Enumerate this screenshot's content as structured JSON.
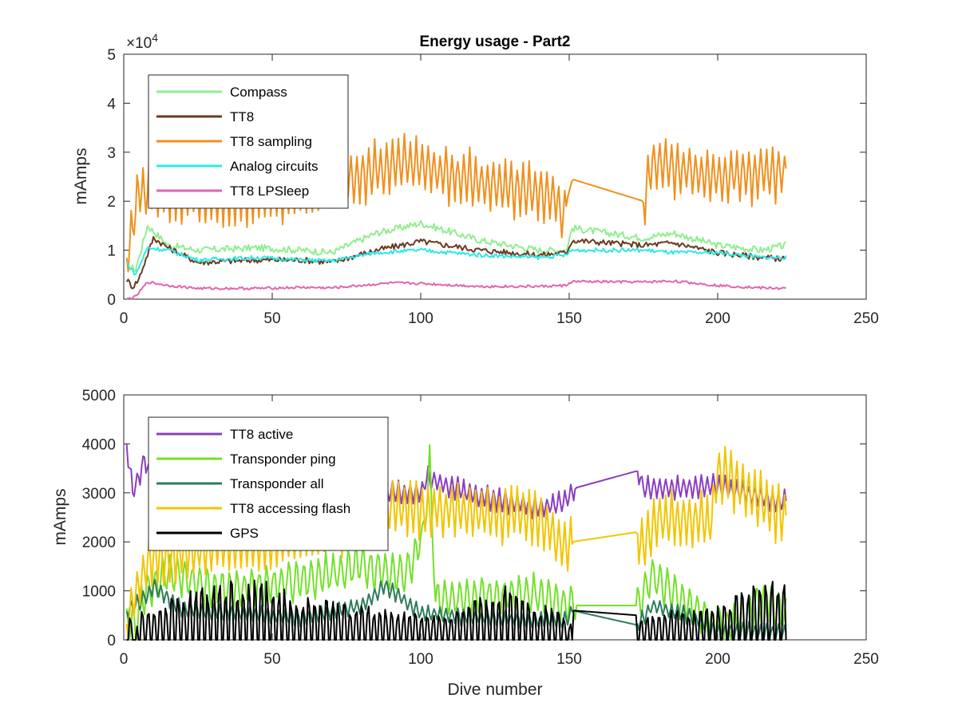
{
  "figure_title": "Energy usage - Part2",
  "chart_data": [
    {
      "type": "line",
      "title": "Energy usage - Part2",
      "xlabel": "",
      "ylabel": "mAmps",
      "exponent_label": "×10",
      "exponent_power": "4",
      "xlim": [
        0,
        250
      ],
      "ylim": [
        0,
        50000
      ],
      "xticks": [
        0,
        50,
        100,
        150,
        200,
        250
      ],
      "yticks": [
        0,
        10000,
        20000,
        30000,
        40000,
        50000
      ],
      "ytick_labels": [
        "0",
        "1",
        "2",
        "3",
        "4",
        "5"
      ],
      "grid": false,
      "legend_position": "top-left",
      "series": [
        {
          "name": "Compass",
          "color": "#90ee90",
          "gen": {
            "kind": "smooth",
            "levels": [
              [
                1,
                7000
              ],
              [
                4,
                6000
              ],
              [
                8,
                15000
              ],
              [
                15,
                11000
              ],
              [
                25,
                10000
              ],
              [
                45,
                10500
              ],
              [
                60,
                10000
              ],
              [
                70,
                9500
              ],
              [
                85,
                13500
              ],
              [
                100,
                15500
              ],
              [
                120,
                12000
              ],
              [
                140,
                10000
              ],
              [
                149,
                10000
              ],
              [
                151,
                14500
              ],
              [
                175,
                12500
              ],
              [
                185,
                13500
              ],
              [
                200,
                11000
              ],
              [
                215,
                10000
              ],
              [
                223,
                11000
              ]
            ],
            "noise": 700
          }
        },
        {
          "name": "TT8",
          "color": "#6b3a1f",
          "gen": {
            "kind": "smooth",
            "levels": [
              [
                1,
                4000
              ],
              [
                3,
                2500
              ],
              [
                5,
                4000
              ],
              [
                10,
                12500
              ],
              [
                15,
                10500
              ],
              [
                25,
                7500
              ],
              [
                45,
                8000
              ],
              [
                60,
                8000
              ],
              [
                70,
                7500
              ],
              [
                85,
                10000
              ],
              [
                100,
                11800
              ],
              [
                120,
                10000
              ],
              [
                140,
                9000
              ],
              [
                149,
                9500
              ],
              [
                151,
                12000
              ],
              [
                175,
                11000
              ],
              [
                185,
                11500
              ],
              [
                200,
                9500
              ],
              [
                215,
                8500
              ],
              [
                223,
                8200
              ]
            ],
            "noise": 600
          }
        },
        {
          "name": "TT8 sampling",
          "color": "#f0901e",
          "gen": {
            "kind": "osc",
            "levels": [
              [
                1,
                8000
              ],
              [
                5,
                22000
              ],
              [
                10,
                22000
              ],
              [
                30,
                21000
              ],
              [
                60,
                22000
              ],
              [
                75,
                24000
              ],
              [
                95,
                28000
              ],
              [
                105,
                26000
              ],
              [
                120,
                24000
              ],
              [
                145,
                21000
              ],
              [
                148,
                17000
              ],
              [
                151,
                24500
              ],
              [
                175,
                20000
              ],
              [
                178,
                28000
              ],
              [
                200,
                25000
              ],
              [
                223,
                26000
              ]
            ],
            "amp": 6000,
            "period": 2,
            "gaps": [
              [
                149,
                151
              ],
              [
                151,
                175
              ]
            ]
          }
        },
        {
          "name": "Analog circuits",
          "color": "#2ee8e8",
          "gen": {
            "kind": "smooth",
            "levels": [
              [
                1,
                7500
              ],
              [
                4,
                5000
              ],
              [
                8,
                10500
              ],
              [
                15,
                10000
              ],
              [
                25,
                8000
              ],
              [
                45,
                8500
              ],
              [
                60,
                8000
              ],
              [
                70,
                7800
              ],
              [
                85,
                9500
              ],
              [
                100,
                10000
              ],
              [
                120,
                9000
              ],
              [
                140,
                8500
              ],
              [
                149,
                9000
              ],
              [
                151,
                10000
              ],
              [
                175,
                10000
              ],
              [
                185,
                9500
              ],
              [
                200,
                9500
              ],
              [
                215,
                8500
              ],
              [
                223,
                8500
              ]
            ],
            "noise": 400
          }
        },
        {
          "name": "TT8 LPSleep",
          "color": "#e066b0",
          "gen": {
            "kind": "smooth",
            "levels": [
              [
                1,
                0
              ],
              [
                4,
                500
              ],
              [
                8,
                3500
              ],
              [
                15,
                2800
              ],
              [
                25,
                2200
              ],
              [
                45,
                2200
              ],
              [
                60,
                2400
              ],
              [
                70,
                2300
              ],
              [
                90,
                3300
              ],
              [
                100,
                3200
              ],
              [
                120,
                2600
              ],
              [
                140,
                2600
              ],
              [
                149,
                2800
              ],
              [
                151,
                3600
              ],
              [
                175,
                3500
              ],
              [
                185,
                3700
              ],
              [
                200,
                2800
              ],
              [
                215,
                2300
              ],
              [
                223,
                2200
              ]
            ],
            "noise": 250
          }
        }
      ]
    },
    {
      "type": "line",
      "title": "",
      "xlabel": "Dive number",
      "ylabel": "mAmps",
      "xlim": [
        0,
        250
      ],
      "ylim": [
        0,
        5000
      ],
      "xticks": [
        0,
        50,
        100,
        150,
        200,
        250
      ],
      "yticks": [
        0,
        1000,
        2000,
        3000,
        4000,
        5000
      ],
      "ytick_labels": [
        "0",
        "1000",
        "2000",
        "3000",
        "4000",
        "5000"
      ],
      "grid": false,
      "legend_position": "top-left",
      "series": [
        {
          "name": "TT8 active",
          "color": "#8b3fbf",
          "gen": {
            "kind": "osc",
            "levels": [
              [
                1,
                4000
              ],
              [
                3,
                3000
              ],
              [
                7,
                3700
              ],
              [
                10,
                3200
              ],
              [
                30,
                3300
              ],
              [
                60,
                3000
              ],
              [
                80,
                3000
              ],
              [
                100,
                3000
              ],
              [
                102,
                3300
              ],
              [
                120,
                2900
              ],
              [
                140,
                2700
              ],
              [
                148,
                2800
              ],
              [
                152,
                3100
              ],
              [
                173,
                3450
              ],
              [
                175,
                3100
              ],
              [
                185,
                3100
              ],
              [
                200,
                3150
              ],
              [
                215,
                2900
              ],
              [
                223,
                2800
              ]
            ],
            "amp": 250,
            "period": 2,
            "gaps": [
              [
                152,
                173
              ]
            ]
          }
        },
        {
          "name": "Transponder ping",
          "color": "#74e02a",
          "gen": {
            "kind": "osc",
            "levels": [
              [
                1,
                500
              ],
              [
                4,
                200
              ],
              [
                6,
                900
              ],
              [
                15,
                1400
              ],
              [
                30,
                1000
              ],
              [
                60,
                1200
              ],
              [
                80,
                1500
              ],
              [
                95,
                1300
              ],
              [
                101,
                2200
              ],
              [
                103,
                3500
              ],
              [
                105,
                800
              ],
              [
                120,
                900
              ],
              [
                140,
                900
              ],
              [
                149,
                700
              ],
              [
                152,
                700
              ],
              [
                173,
                700
              ],
              [
                178,
                1300
              ],
              [
                190,
                700
              ],
              [
                199,
                300
              ],
              [
                205,
                300
              ],
              [
                215,
                800
              ],
              [
                223,
                500
              ]
            ],
            "amp": 450,
            "period": 2.5,
            "gaps": [
              [
                152,
                173
              ]
            ]
          }
        },
        {
          "name": "Transponder all",
          "color": "#2e7d5b",
          "gen": {
            "kind": "osc",
            "levels": [
              [
                1,
                600
              ],
              [
                8,
                900
              ],
              [
                10,
                1100
              ],
              [
                20,
                600
              ],
              [
                40,
                550
              ],
              [
                60,
                450
              ],
              [
                80,
                700
              ],
              [
                88,
                1100
              ],
              [
                100,
                550
              ],
              [
                120,
                450
              ],
              [
                140,
                400
              ],
              [
                149,
                400
              ],
              [
                151,
                600
              ],
              [
                173,
                300
              ],
              [
                178,
                700
              ],
              [
                190,
                500
              ],
              [
                199,
                200
              ],
              [
                223,
                150
              ]
            ],
            "amp": 180,
            "period": 2,
            "gaps": [
              [
                151,
                173
              ]
            ]
          }
        },
        {
          "name": "TT8 accessing flash",
          "color": "#f2c500",
          "gen": {
            "kind": "osc",
            "levels": [
              [
                1,
                400
              ],
              [
                4,
                900
              ],
              [
                8,
                1600
              ],
              [
                15,
                1700
              ],
              [
                30,
                1900
              ],
              [
                50,
                2000
              ],
              [
                70,
                2200
              ],
              [
                85,
                2700
              ],
              [
                100,
                2700
              ],
              [
                120,
                2600
              ],
              [
                140,
                2500
              ],
              [
                148,
                1900
              ],
              [
                151,
                2000
              ],
              [
                173,
                2200
              ],
              [
                175,
                1900
              ],
              [
                180,
                2500
              ],
              [
                198,
                2400
              ],
              [
                200,
                3500
              ],
              [
                210,
                3000
              ],
              [
                223,
                2500
              ]
            ],
            "amp": 600,
            "period": 2,
            "gaps": [
              [
                151,
                173
              ]
            ]
          }
        },
        {
          "name": "GPS",
          "color": "#000000",
          "gen": {
            "kind": "pulse",
            "levels": [
              [
                1,
                700
              ],
              [
                4,
                0
              ],
              [
                5,
                600
              ],
              [
                10,
                700
              ],
              [
                30,
                1200
              ],
              [
                45,
                1300
              ],
              [
                60,
                900
              ],
              [
                80,
                700
              ],
              [
                100,
                550
              ],
              [
                110,
                550
              ],
              [
                130,
                1200
              ],
              [
                140,
                700
              ],
              [
                148,
                700
              ],
              [
                149,
                0
              ],
              [
                151,
                600
              ],
              [
                173,
                500
              ],
              [
                178,
                600
              ],
              [
                200,
                700
              ],
              [
                215,
                1200
              ],
              [
                223,
                1500
              ]
            ],
            "period": 2,
            "gaps": [
              [
                151,
                173
              ]
            ]
          }
        }
      ]
    }
  ]
}
